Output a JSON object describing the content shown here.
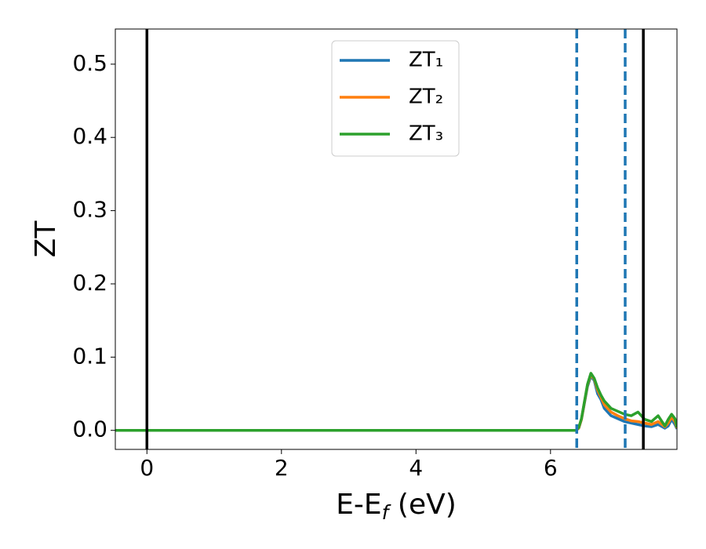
{
  "chart_data": {
    "type": "line",
    "xlabel": [
      "E-E",
      "f",
      " (eV)"
    ],
    "ylabel": "ZT",
    "x": [
      -0.47,
      6.0,
      6.38,
      6.42,
      6.46,
      6.5,
      6.55,
      6.6,
      6.65,
      6.7,
      6.75,
      6.8,
      6.9,
      7.0,
      7.1,
      7.2,
      7.3,
      7.4,
      7.5,
      7.6,
      7.7,
      7.75,
      7.8,
      7.85,
      7.88
    ],
    "series": [
      {
        "name": "ZT₁",
        "color": "#1f77b4",
        "values": [
          0,
          0,
          0,
          0.003,
          0.015,
          0.035,
          0.06,
          0.074,
          0.068,
          0.05,
          0.042,
          0.03,
          0.02,
          0.016,
          0.012,
          0.01,
          0.008,
          0.006,
          0.005,
          0.008,
          0.003,
          0.006,
          0.015,
          0.008,
          0.002
        ]
      },
      {
        "name": "ZT₂",
        "color": "#ff7f0e",
        "values": [
          0,
          0,
          0,
          0.003,
          0.015,
          0.036,
          0.062,
          0.076,
          0.07,
          0.055,
          0.045,
          0.035,
          0.025,
          0.02,
          0.016,
          0.013,
          0.012,
          0.01,
          0.008,
          0.012,
          0.005,
          0.01,
          0.018,
          0.012,
          0.003
        ]
      },
      {
        "name": "ZT₃",
        "color": "#2ca02c",
        "values": [
          0,
          0,
          0,
          0.004,
          0.016,
          0.037,
          0.063,
          0.078,
          0.071,
          0.058,
          0.048,
          0.04,
          0.03,
          0.026,
          0.022,
          0.02,
          0.025,
          0.015,
          0.012,
          0.02,
          0.006,
          0.015,
          0.022,
          0.016,
          0.004
        ]
      }
    ],
    "vlines": [
      {
        "x": 0,
        "color": "#000000",
        "style": "solid"
      },
      {
        "x": 6.39,
        "color": "#1f77b4",
        "style": "dashed"
      },
      {
        "x": 7.11,
        "color": "#1f77b4",
        "style": "dashed"
      },
      {
        "x": 7.38,
        "color": "#000000",
        "style": "solid"
      }
    ],
    "xlim": [
      -0.47,
      7.88
    ],
    "xticks": [
      0,
      2,
      4,
      6
    ],
    "ylim": [
      -0.026,
      0.548
    ],
    "yticks": [
      {
        "value": 0,
        "label": "0.0"
      },
      0.1,
      0.2,
      0.3,
      0.4,
      0.5
    ],
    "legend": "upper center"
  }
}
